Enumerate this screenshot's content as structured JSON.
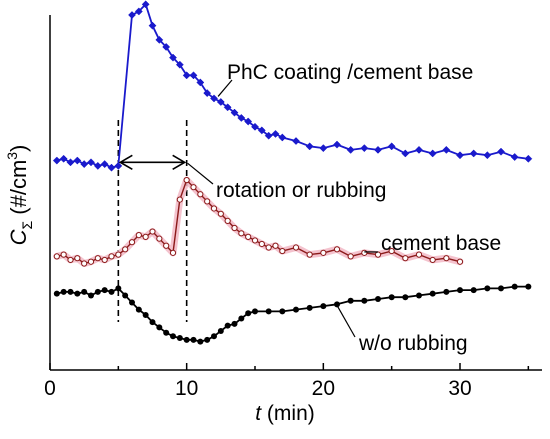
{
  "chart_data": {
    "type": "line",
    "xlabel": {
      "var": "t",
      "unit": " (min)"
    },
    "ylabel": {
      "var": "C",
      "sub": "Σ",
      "unit": " (#/cm",
      "sup": "3",
      "close": ")"
    },
    "xlim": [
      0,
      36
    ],
    "ylim": [
      0,
      10
    ],
    "xticks": [
      0,
      10,
      20,
      30
    ],
    "yticks_labeled": false,
    "grid": false,
    "legend": "none",
    "series": [
      {
        "key": "phc",
        "color": "#1a1acc",
        "marker": "diamond-filled",
        "x": [
          0.5,
          1,
          1.5,
          2,
          2.5,
          3,
          3.5,
          4,
          4.5,
          5,
          6,
          6.5,
          7,
          7.5,
          8,
          8.5,
          9,
          9.5,
          10,
          10.5,
          11,
          11.5,
          12,
          12.5,
          13,
          13.5,
          14,
          14.5,
          15,
          15.5,
          16,
          16.5,
          17,
          18,
          19,
          20,
          21,
          22,
          23,
          24,
          25,
          26,
          27,
          28,
          29,
          30,
          31,
          32,
          33,
          34,
          35
        ],
        "y": [
          5.9,
          5.95,
          5.85,
          5.9,
          5.8,
          5.85,
          5.75,
          5.8,
          5.7,
          5.75,
          10.0,
          10.1,
          10.3,
          9.7,
          9.3,
          9.1,
          8.8,
          8.6,
          8.3,
          8.3,
          8.1,
          7.8,
          7.65,
          7.55,
          7.4,
          7.25,
          7.1,
          7.0,
          6.85,
          6.75,
          6.6,
          6.65,
          6.55,
          6.45,
          6.3,
          6.25,
          6.35,
          6.2,
          6.25,
          6.2,
          6.3,
          6.1,
          6.2,
          6.1,
          6.2,
          6.05,
          6.1,
          6.05,
          6.15,
          6.0,
          5.95
        ]
      },
      {
        "key": "cement",
        "color": "#8b1a1a",
        "band_color": "#f2b8c6",
        "marker": "circle-open",
        "x": [
          0.5,
          1,
          1.5,
          2,
          2.5,
          3,
          3.5,
          4,
          4.5,
          5,
          5.5,
          6,
          6.5,
          7,
          7.5,
          8,
          8.5,
          9,
          9.5,
          10,
          10.5,
          11,
          11.5,
          12,
          12.5,
          13,
          13.5,
          14,
          14.5,
          15,
          15.5,
          16,
          16.5,
          17,
          18,
          19,
          20,
          21,
          22,
          23,
          24,
          25,
          26,
          27,
          28,
          29,
          30
        ],
        "y": [
          3.2,
          3.25,
          3.1,
          3.15,
          3.0,
          3.05,
          3.15,
          3.1,
          3.2,
          3.25,
          3.4,
          3.6,
          3.8,
          3.75,
          3.9,
          3.7,
          3.5,
          3.3,
          4.8,
          5.35,
          5.15,
          4.95,
          4.75,
          4.55,
          4.4,
          4.2,
          4.0,
          3.85,
          3.75,
          3.65,
          3.55,
          3.45,
          3.5,
          3.35,
          3.45,
          3.25,
          3.3,
          3.4,
          3.2,
          3.3,
          3.25,
          3.35,
          3.15,
          3.25,
          3.1,
          3.15,
          3.05
        ]
      },
      {
        "key": "worub",
        "color": "#000000",
        "marker": "circle-filled",
        "x": [
          0.5,
          1,
          1.5,
          2,
          2.5,
          3,
          3.5,
          4,
          4.5,
          5,
          5.5,
          6,
          6.5,
          7,
          7.5,
          8,
          8.5,
          9,
          9.5,
          10,
          10.5,
          11,
          11.5,
          12,
          12.5,
          13,
          13.5,
          14,
          14.5,
          15,
          16,
          17,
          18,
          19,
          20,
          21,
          22,
          23,
          24,
          25,
          26,
          27,
          28,
          29,
          30,
          31,
          32,
          33,
          34,
          35
        ],
        "y": [
          2.15,
          2.2,
          2.2,
          2.15,
          2.2,
          2.1,
          2.2,
          2.25,
          2.2,
          2.3,
          2.1,
          1.9,
          1.7,
          1.55,
          1.35,
          1.2,
          1.05,
          0.95,
          0.9,
          0.85,
          0.85,
          0.8,
          0.85,
          0.95,
          1.1,
          1.25,
          1.3,
          1.45,
          1.6,
          1.65,
          1.65,
          1.65,
          1.7,
          1.75,
          1.8,
          1.85,
          1.95,
          1.95,
          2.0,
          2.05,
          2.05,
          2.1,
          2.15,
          2.2,
          2.25,
          2.25,
          2.3,
          2.3,
          2.35,
          2.35
        ]
      }
    ],
    "vlines": [
      5,
      10
    ],
    "arrow": {
      "from": 5,
      "to": 10,
      "y": 5.85
    },
    "annotations": {
      "phc": "PhC coating /cement base",
      "rotation": "rotation or rubbing",
      "cement": "cement base",
      "worub": "w/o rubbing"
    }
  }
}
